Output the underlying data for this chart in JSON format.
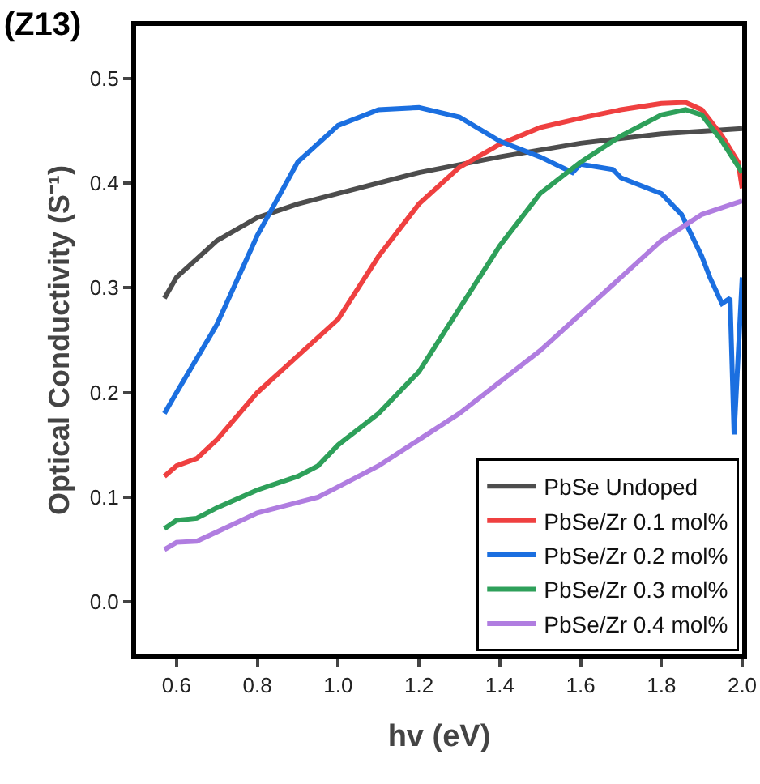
{
  "chart_data": {
    "type": "line",
    "title": "(Z13)",
    "xlabel": "hv (eV)",
    "ylabel": "Optical Conductivity (S⁻¹)",
    "xlim": [
      0.5,
      2.0
    ],
    "xticks": [
      0.6,
      0.8,
      {
        "value": 1.0,
        "label": "1.0"
      },
      1.2,
      1.4,
      1.6,
      1.8,
      {
        "value": 2.0,
        "label": "2.0"
      }
    ],
    "ylim": [
      -0.05,
      0.55
    ],
    "yticks": [
      {
        "value": 0,
        "label": "0.0"
      },
      0.1,
      0.2,
      0.3,
      0.4,
      0.5
    ],
    "grid": false,
    "legend": "bottom right",
    "marker": "none",
    "line_style": "solid",
    "series": [
      {
        "name": "PbSe Undoped",
        "color": "#4d4d4d",
        "x": [
          0.57,
          0.6,
          0.7,
          0.8,
          0.9,
          1.0,
          1.2,
          1.4,
          1.6,
          1.8,
          2.0
        ],
        "values": [
          0.29,
          0.31,
          0.345,
          0.367,
          0.38,
          0.39,
          0.41,
          0.425,
          0.438,
          0.447,
          0.452
        ]
      },
      {
        "name": "PbSe/Zr 0.1 mol%",
        "color": "#ef4040",
        "x": [
          0.57,
          0.6,
          0.65,
          0.7,
          0.8,
          0.9,
          1.0,
          1.1,
          1.2,
          1.3,
          1.4,
          1.5,
          1.6,
          1.7,
          1.8,
          1.86,
          1.9,
          1.95,
          1.99,
          2.0
        ],
        "values": [
          0.12,
          0.13,
          0.137,
          0.155,
          0.2,
          0.235,
          0.27,
          0.33,
          0.38,
          0.415,
          0.437,
          0.453,
          0.462,
          0.47,
          0.476,
          0.477,
          0.47,
          0.445,
          0.42,
          0.395
        ]
      },
      {
        "name": "PbSe/Zr 0.2 mol%",
        "color": "#1b6fe0",
        "x": [
          0.57,
          0.6,
          0.7,
          0.8,
          0.9,
          1.0,
          1.1,
          1.2,
          1.3,
          1.4,
          1.5,
          1.58,
          1.6,
          1.68,
          1.7,
          1.8,
          1.85,
          1.9,
          1.92,
          1.95,
          1.97,
          1.98,
          2.0
        ],
        "values": [
          0.18,
          0.2,
          0.265,
          0.35,
          0.42,
          0.455,
          0.47,
          0.472,
          0.463,
          0.44,
          0.425,
          0.41,
          0.418,
          0.413,
          0.405,
          0.39,
          0.37,
          0.33,
          0.31,
          0.285,
          0.29,
          0.16,
          0.31
        ]
      },
      {
        "name": "PbSe/Zr 0.3 mol%",
        "color": "#2ea05a",
        "x": [
          0.57,
          0.6,
          0.65,
          0.7,
          0.8,
          0.9,
          0.95,
          1.0,
          1.1,
          1.2,
          1.3,
          1.4,
          1.5,
          1.6,
          1.7,
          1.8,
          1.86,
          1.9,
          1.95,
          2.0
        ],
        "values": [
          0.07,
          0.078,
          0.08,
          0.09,
          0.107,
          0.12,
          0.13,
          0.15,
          0.18,
          0.22,
          0.28,
          0.34,
          0.39,
          0.42,
          0.445,
          0.465,
          0.47,
          0.465,
          0.44,
          0.41
        ]
      },
      {
        "name": "PbSe/Zr 0.4 mol%",
        "color": "#b07de0",
        "x": [
          0.57,
          0.6,
          0.65,
          0.7,
          0.8,
          0.9,
          0.95,
          1.0,
          1.1,
          1.2,
          1.3,
          1.4,
          1.5,
          1.6,
          1.7,
          1.8,
          1.9,
          2.0
        ],
        "values": [
          0.05,
          0.057,
          0.058,
          0.067,
          0.085,
          0.095,
          0.1,
          0.11,
          0.13,
          0.155,
          0.18,
          0.21,
          0.24,
          0.275,
          0.31,
          0.345,
          0.37,
          0.383
        ]
      }
    ]
  }
}
